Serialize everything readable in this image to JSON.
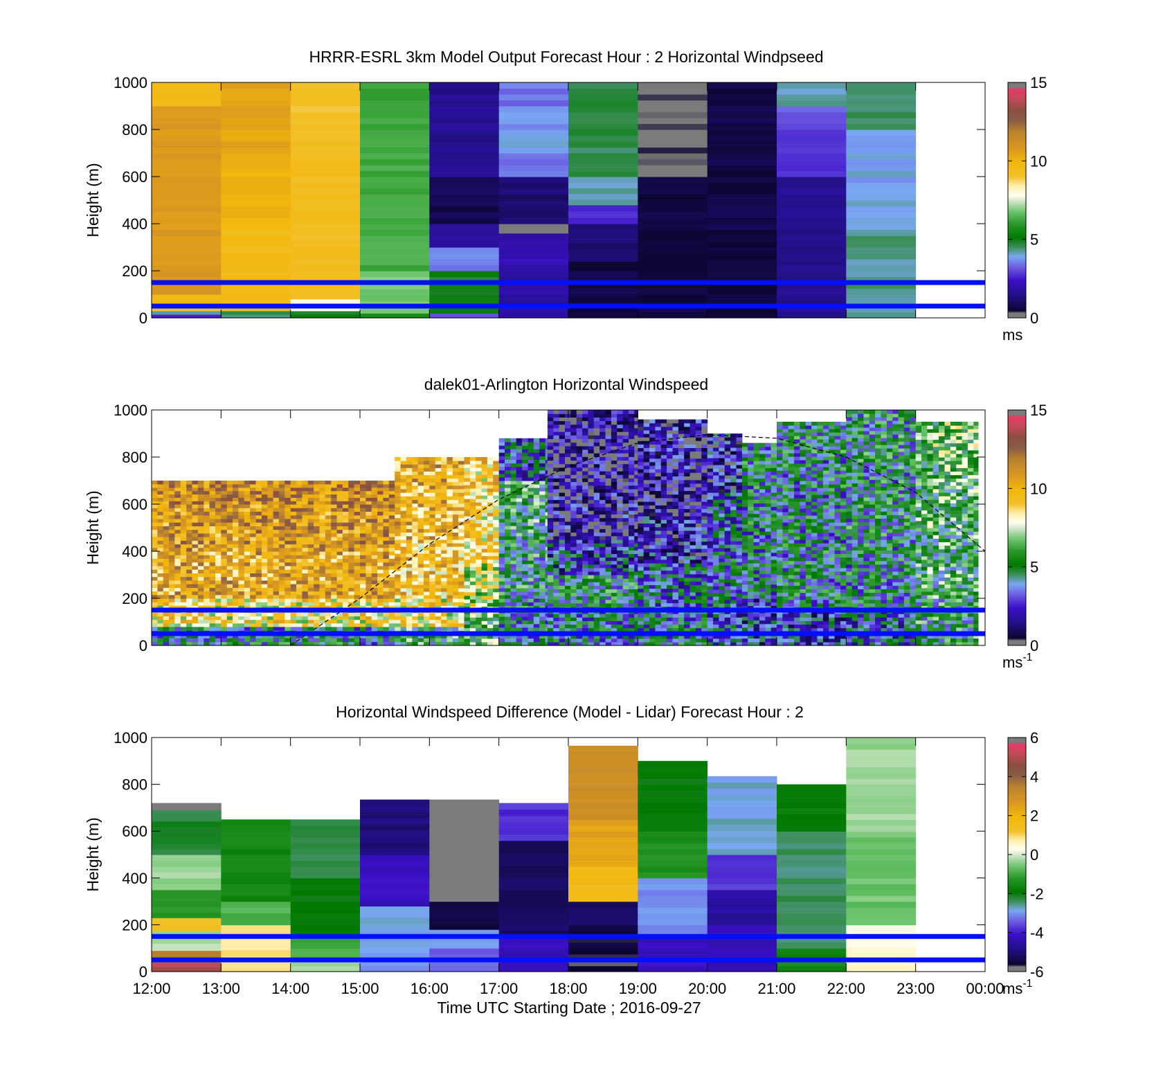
{
  "chart_data": [
    {
      "type": "heatmap",
      "title": "HRRR-ESRL 3km Model Output   Forecast Hour : 2 Horizontal Windpseed",
      "ylabel": "Height (m)",
      "ylim": [
        0,
        1000
      ],
      "yticks": [
        "0",
        "200",
        "400",
        "600",
        "800",
        "1000"
      ],
      "xlim": [
        12,
        24
      ],
      "colorbar": {
        "min": 0,
        "max": 15,
        "ticks": [
          "0",
          "5",
          "10",
          "15"
        ],
        "unit": "ms"
      },
      "reference_lines_m": [
        150,
        50
      ],
      "columns": [
        {
          "hour": 12,
          "top": 1000,
          "values": [
            [
              0,
              15,
              2.8
            ],
            [
              15,
              30,
              4
            ],
            [
              30,
              60,
              9
            ],
            [
              60,
              100,
              9.6
            ],
            [
              100,
              900,
              10.8
            ],
            [
              900,
              1000,
              9.6
            ]
          ]
        },
        {
          "hour": 13,
          "top": 1000,
          "values": [
            [
              0,
              15,
              4.5
            ],
            [
              15,
              30,
              4.8
            ],
            [
              30,
              400,
              9.6
            ],
            [
              400,
              700,
              10
            ],
            [
              700,
              1000,
              10.4
            ]
          ]
        },
        {
          "hour": 14,
          "top": 1000,
          "values": [
            [
              0,
              15,
              5
            ],
            [
              15,
              30,
              4.6
            ],
            [
              30,
              80,
              7.8
            ],
            [
              80,
              700,
              9.3
            ],
            [
              700,
              1000,
              9.1
            ]
          ]
        },
        {
          "hour": 15,
          "top": 1000,
          "values": [
            [
              0,
              20,
              5.6
            ],
            [
              20,
              200,
              6.8
            ],
            [
              200,
              500,
              6.3
            ],
            [
              500,
              1000,
              6.2
            ]
          ]
        },
        {
          "hour": 16,
          "top": 1000,
          "values": [
            [
              0,
              20,
              3
            ],
            [
              20,
              200,
              4.9
            ],
            [
              200,
              300,
              3.5
            ],
            [
              300,
              400,
              1.6
            ],
            [
              400,
              600,
              0.8
            ],
            [
              600,
              1000,
              1.6
            ]
          ]
        },
        {
          "hour": 17,
          "top": 1000,
          "values": [
            [
              0,
              200,
              1.8
            ],
            [
              200,
              360,
              2
            ],
            [
              360,
              400,
              0.2
            ],
            [
              400,
              600,
              1.2
            ],
            [
              600,
              700,
              3.5
            ],
            [
              700,
              900,
              3.8
            ],
            [
              900,
              1000,
              3.4
            ]
          ]
        },
        {
          "hour": 18,
          "top": 1000,
          "values": [
            [
              0,
              200,
              0.7
            ],
            [
              200,
              240,
              0.3
            ],
            [
              240,
              400,
              1.2
            ],
            [
              400,
              480,
              2.8
            ],
            [
              480,
              600,
              4.2
            ],
            [
              600,
              1000,
              4.6
            ]
          ]
        },
        {
          "hour": 19,
          "top": 1000,
          "values": [
            [
              0,
              600,
              0.6
            ],
            [
              600,
              1000,
              0.2
            ]
          ]
        },
        {
          "hour": 20,
          "top": 1000,
          "values": [
            [
              0,
              1000,
              0.7
            ]
          ]
        },
        {
          "hour": 21,
          "top": 1000,
          "values": [
            [
              0,
              600,
              1.6
            ],
            [
              600,
              800,
              2.8
            ],
            [
              800,
              900,
              3.2
            ],
            [
              900,
              1000,
              4.2
            ]
          ]
        },
        {
          "hour": 22,
          "top": 1000,
          "values": [
            [
              0,
              350,
              4.3
            ],
            [
              350,
              500,
              4
            ],
            [
              500,
              800,
              3.9
            ],
            [
              800,
              1000,
              4.5
            ]
          ]
        }
      ]
    },
    {
      "type": "heatmap",
      "title": "dalek01-Arlington  Horizontal Windspeed",
      "ylabel": "Height (m)",
      "ylim": [
        0,
        1000
      ],
      "yticks": [
        "0",
        "200",
        "400",
        "600",
        "800",
        "1000"
      ],
      "xlim": [
        12,
        24
      ],
      "colorbar": {
        "min": 0,
        "max": 15,
        "ticks": [
          "0",
          "5",
          "10",
          "15"
        ],
        "unit": "ms",
        "unit_exp": "-1"
      },
      "reference_lines_m": [
        150,
        50
      ],
      "elevation_curve": {
        "x": [
          14,
          15,
          16,
          17,
          18,
          19,
          20,
          21,
          22,
          23,
          24
        ],
        "y": [
          0,
          200,
          430,
          620,
          760,
          860,
          895,
          880,
          800,
          650,
          400
        ]
      },
      "profiles": [
        {
          "start": 12.0,
          "end": 15.5,
          "top": 700,
          "levels": [
            [
              0,
              80,
              4.5
            ],
            [
              80,
              200,
              8.5
            ],
            [
              200,
              400,
              10.3
            ],
            [
              400,
              600,
              10.8
            ],
            [
              600,
              700,
              11.2
            ]
          ]
        },
        {
          "start": 15.5,
          "end": 16.5,
          "top": 800,
          "levels": [
            [
              0,
              80,
              5.5
            ],
            [
              80,
              200,
              8.4
            ],
            [
              200,
              450,
              9.6
            ],
            [
              450,
              650,
              10
            ],
            [
              650,
              800,
              10.2
            ]
          ]
        },
        {
          "start": 16.5,
          "end": 17.0,
          "top": 800,
          "levels": [
            [
              0,
              120,
              6
            ],
            [
              120,
              350,
              7.5
            ],
            [
              350,
              550,
              8.8
            ],
            [
              550,
              800,
              9
            ]
          ]
        },
        {
          "start": 17.0,
          "end": 17.7,
          "top": 880,
          "levels": [
            [
              0,
              200,
              4.6
            ],
            [
              200,
              450,
              5
            ],
            [
              450,
              700,
              5.4
            ],
            [
              700,
              880,
              3.3
            ]
          ]
        },
        {
          "start": 17.7,
          "end": 19.0,
          "top": 1000,
          "levels": [
            [
              0,
              150,
              4.3
            ],
            [
              150,
              300,
              4.8
            ],
            [
              300,
              450,
              3
            ],
            [
              450,
              650,
              1.6
            ],
            [
              650,
              1000,
              1.3
            ]
          ]
        },
        {
          "start": 19.0,
          "end": 20.0,
          "top": 960,
          "levels": [
            [
              0,
              150,
              4.3
            ],
            [
              150,
              350,
              3.8
            ],
            [
              350,
              550,
              2.2
            ],
            [
              550,
              750,
              1.4
            ],
            [
              750,
              960,
              1.7
            ]
          ]
        },
        {
          "start": 20.0,
          "end": 20.5,
          "top": 900,
          "levels": [
            [
              0,
              150,
              3.5
            ],
            [
              150,
              400,
              4.3
            ],
            [
              400,
              650,
              3.6
            ],
            [
              650,
              900,
              2.3
            ]
          ]
        },
        {
          "start": 20.5,
          "end": 21.0,
          "top": 860,
          "levels": [
            [
              0,
              200,
              2.8
            ],
            [
              200,
              500,
              4.2
            ],
            [
              500,
              860,
              4.5
            ]
          ]
        },
        {
          "start": 21.0,
          "end": 22.0,
          "top": 950,
          "levels": [
            [
              0,
              150,
              3
            ],
            [
              150,
              450,
              4.5
            ],
            [
              450,
              700,
              4.4
            ],
            [
              700,
              950,
              4.6
            ]
          ]
        },
        {
          "start": 22.0,
          "end": 23.0,
          "top": 1000,
          "levels": [
            [
              0,
              150,
              3.6
            ],
            [
              150,
              450,
              4.5
            ],
            [
              450,
              750,
              4.7
            ],
            [
              750,
              1000,
              4.8
            ]
          ]
        },
        {
          "start": 23.0,
          "end": 23.9,
          "top": 950,
          "levels": [
            [
              0,
              200,
              5.2
            ],
            [
              200,
              500,
              5.6
            ],
            [
              500,
              800,
              6
            ],
            [
              800,
              950,
              6.4
            ]
          ]
        }
      ]
    },
    {
      "type": "heatmap",
      "title": "Horizontal Windspeed Difference (Model - Lidar) Forecast Hour : 2",
      "ylabel": "Height (m)",
      "xlabel": "Time UTC  Starting Date ; 2016-09-27",
      "ylim": [
        0,
        1000
      ],
      "yticks": [
        "0",
        "200",
        "400",
        "600",
        "800",
        "1000"
      ],
      "xlim": [
        12,
        24
      ],
      "xticks": [
        "12:00",
        "13:00",
        "14:00",
        "15:00",
        "16:00",
        "17:00",
        "18:00",
        "19:00",
        "20:00",
        "21:00",
        "22:00",
        "23:00",
        "00:00"
      ],
      "colorbar": {
        "min": -6,
        "max": 6,
        "ticks": [
          "-6",
          "-4",
          "-2",
          "0",
          "2",
          "4",
          "6"
        ],
        "unit": "ms",
        "unit_exp": "-1"
      },
      "reference_lines_m": [
        150,
        50
      ],
      "columns": [
        {
          "hour": 12,
          "top": 720,
          "values": [
            [
              0,
              40,
              5.0
            ],
            [
              40,
              90,
              3.4
            ],
            [
              90,
              120,
              -0.1
            ],
            [
              120,
              175,
              -0.4
            ],
            [
              175,
              230,
              1.3
            ],
            [
              230,
              350,
              -1.2
            ],
            [
              350,
              500,
              -0.3
            ],
            [
              500,
              690,
              -2.2
            ],
            [
              690,
              720,
              -6.5
            ]
          ]
        },
        {
          "hour": 13,
          "top": 650,
          "values": [
            [
              0,
              40,
              1.0
            ],
            [
              40,
              200,
              0.9
            ],
            [
              200,
              300,
              -0.8
            ],
            [
              300,
              650,
              -1.6
            ]
          ]
        },
        {
          "hour": 14,
          "top": 650,
          "values": [
            [
              0,
              50,
              -0.4
            ],
            [
              50,
              150,
              -1.0
            ],
            [
              150,
              400,
              -1.9
            ],
            [
              400,
              650,
              -2.3
            ]
          ]
        },
        {
          "hour": 15,
          "top": 735,
          "values": [
            [
              0,
              80,
              -3.1
            ],
            [
              80,
              280,
              -2.9
            ],
            [
              280,
              500,
              -4.2
            ],
            [
              500,
              735,
              -5.0
            ]
          ]
        },
        {
          "hour": 16,
          "top": 735,
          "values": [
            [
              0,
              100,
              -3.4
            ],
            [
              100,
              180,
              -3.0
            ],
            [
              180,
              300,
              -5.5
            ],
            [
              300,
              735,
              -6.5
            ]
          ]
        },
        {
          "hour": 17,
          "top": 720,
          "values": [
            [
              0,
              150,
              -4.3
            ],
            [
              150,
              400,
              -5.2
            ],
            [
              400,
              560,
              -5.3
            ],
            [
              560,
              720,
              -3.8
            ]
          ]
        },
        {
          "hour": 18,
          "top": 965,
          "values": [
            [
              0,
              200,
              -5.6
            ],
            [
              200,
              300,
              -5.2
            ],
            [
              300,
              450,
              1.6
            ],
            [
              450,
              650,
              2.4
            ],
            [
              650,
              965,
              3.0
            ]
          ]
        },
        {
          "hour": 19,
          "top": 900,
          "values": [
            [
              0,
              150,
              -4.2
            ],
            [
              150,
              400,
              -3.1
            ],
            [
              400,
              600,
              -1.4
            ],
            [
              600,
              900,
              -1.9
            ]
          ]
        },
        {
          "hour": 20,
          "top": 835,
          "values": [
            [
              0,
              200,
              -4.2
            ],
            [
              200,
              350,
              -4.6
            ],
            [
              350,
              500,
              -3.8
            ],
            [
              500,
              835,
              -2.8
            ]
          ]
        },
        {
          "hour": 21,
          "top": 800,
          "values": [
            [
              0,
              100,
              -1.6
            ],
            [
              100,
              600,
              -2.4
            ],
            [
              600,
              800,
              -1.8
            ]
          ]
        },
        {
          "hour": 22,
          "top": 1000,
          "values": [
            [
              0,
              80,
              0.6
            ],
            [
              80,
              200,
              0.3
            ],
            [
              200,
              600,
              -0.6
            ],
            [
              600,
              1000,
              -0.3
            ]
          ]
        }
      ]
    }
  ]
}
